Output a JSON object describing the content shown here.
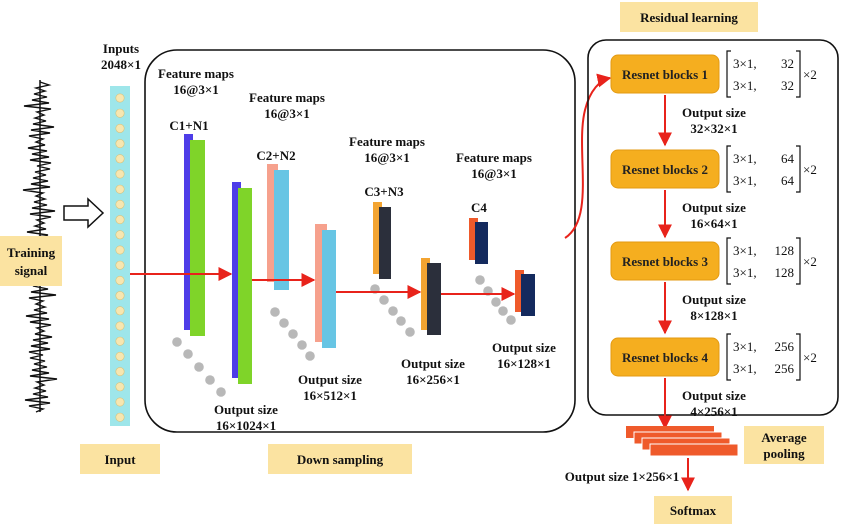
{
  "training_signal": {
    "line1": "Training",
    "line2": "signal"
  },
  "input": {
    "title_line1": "Inputs",
    "title_line2": "2048×1",
    "caption": "Input"
  },
  "down_sampling": {
    "caption": "Down sampling",
    "stages": [
      {
        "fm_line1": "Feature maps",
        "fm_line2": "16@3×1",
        "name": "C1+N1",
        "out_line1": "Output size",
        "out_line2": "16×1024×1"
      },
      {
        "fm_line1": "Feature maps",
        "fm_line2": "16@3×1",
        "name": "C2+N2",
        "out_line1": "Output size",
        "out_line2": "16×512×1"
      },
      {
        "fm_line1": "Feature maps",
        "fm_line2": "16@3×1",
        "name": "C3+N3",
        "out_line1": "Output size",
        "out_line2": "16×256×1"
      },
      {
        "fm_line1": "Feature maps",
        "fm_line2": "16@3×1",
        "name": "C4",
        "out_line1": "Output size",
        "out_line2": "16×128×1"
      }
    ]
  },
  "residual_learning": {
    "title": "Residual learning",
    "blocks": [
      {
        "name": "Resnet blocks 1",
        "row1_a": "3×1,",
        "row1_b": "32",
        "row2_a": "3×1,",
        "row2_b": "32",
        "mult": "×2",
        "out_line1": "Output size",
        "out_line2": "32×32×1"
      },
      {
        "name": "Resnet blocks 2",
        "row1_a": "3×1,",
        "row1_b": "64",
        "row2_a": "3×1,",
        "row2_b": "64",
        "mult": "×2",
        "out_line1": "Output size",
        "out_line2": "16×64×1"
      },
      {
        "name": "Resnet blocks 3",
        "row1_a": "3×1,",
        "row1_b": "128",
        "row2_a": "3×1,",
        "row2_b": "128",
        "mult": "×2",
        "out_line1": "Output size",
        "out_line2": "8×128×1"
      },
      {
        "name": "Resnet blocks 4",
        "row1_a": "3×1,",
        "row1_b": "256",
        "row2_a": "3×1,",
        "row2_b": "256",
        "mult": "×2",
        "out_line1": "Output size",
        "out_line2": "4×256×1"
      }
    ]
  },
  "average_pooling": {
    "line1": "Average",
    "line2": "pooling",
    "output": "Output size 1×256×1"
  },
  "softmax": {
    "label": "Softmax"
  },
  "colors": {
    "label_bg": "#fbe3a1",
    "resnet_fill": "#f5ae1f",
    "arrow_red": "#e8231b",
    "input_strip": "#9ee6ea",
    "map_blue": "#4e3de8",
    "map_green": "#7fd429",
    "map_salmon": "#f6a18d",
    "map_skyblue": "#67c5e4",
    "map_orange": "#f3a431",
    "map_dark": "#2b2f3b",
    "map_red": "#ef5a2b",
    "map_navy": "#142a5e"
  }
}
